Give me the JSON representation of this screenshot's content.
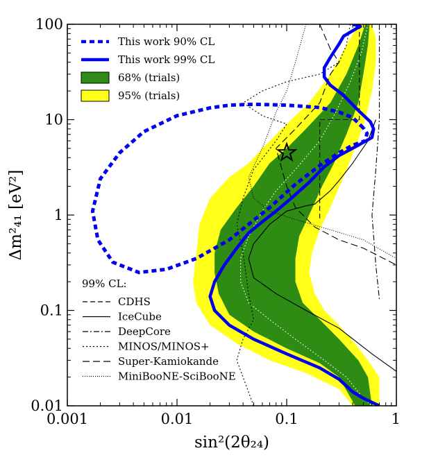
{
  "chart_data": {
    "type": "line",
    "xscale": "log",
    "yscale": "log",
    "xlim": [
      0.001,
      1
    ],
    "ylim": [
      0.01,
      100
    ],
    "xlabel": "sin²(2θ₂₄)",
    "ylabel": "Δm²₄₁ [eV²]",
    "xticks": [
      {
        "value": 0.001,
        "label": "0.001"
      },
      {
        "value": 0.01,
        "label": "0.01"
      },
      {
        "value": 0.1,
        "label": "0.1"
      },
      {
        "value": 1,
        "label": "1"
      }
    ],
    "yticks": [
      {
        "value": 0.01,
        "label": "0.01"
      },
      {
        "value": 0.1,
        "label": "0.1"
      },
      {
        "value": 1,
        "label": "1"
      },
      {
        "value": 10,
        "label": "10"
      },
      {
        "value": 100,
        "label": "100"
      }
    ],
    "legend_top": [
      {
        "label": "This work 90% CL",
        "style": "dashed-thick",
        "color": "#0000ee"
      },
      {
        "label": "This work 99% CL",
        "style": "solid-thick",
        "color": "#0000ee"
      },
      {
        "label": "68% (trials)",
        "style": "patch",
        "color": "#2e8b14"
      },
      {
        "label": "95% (trials)",
        "style": "patch",
        "color": "#ffff1a"
      }
    ],
    "legend_bottom_title": "99% CL:",
    "legend_bottom": [
      {
        "label": "CDHS",
        "style": "dashed"
      },
      {
        "label": "IceCube",
        "style": "solid"
      },
      {
        "label": "DeepCore",
        "style": "dashdot"
      },
      {
        "label": "MINOS/MINOS+",
        "style": "dotted"
      },
      {
        "label": "Super-Kamiokande",
        "style": "loosedash"
      },
      {
        "label": "MiniBooNE-SciBooNE",
        "style": "finedot"
      }
    ],
    "best_fit": {
      "x": 0.1,
      "y": 4.5,
      "marker": "star"
    },
    "band95": [
      [
        0.45,
        100
      ],
      [
        0.35,
        60
      ],
      [
        0.25,
        30
      ],
      [
        0.16,
        15
      ],
      [
        0.09,
        8
      ],
      [
        0.06,
        5
      ],
      [
        0.045,
        3.5
      ],
      [
        0.03,
        2.5
      ],
      [
        0.02,
        1.5
      ],
      [
        0.016,
        0.8
      ],
      [
        0.015,
        0.4
      ],
      [
        0.014,
        0.2
      ],
      [
        0.015,
        0.12
      ],
      [
        0.02,
        0.07
      ],
      [
        0.035,
        0.045
      ],
      [
        0.07,
        0.03
      ],
      [
        0.15,
        0.022
      ],
      [
        0.3,
        0.015
      ],
      [
        0.4,
        0.01
      ],
      [
        0.7,
        0.01
      ],
      [
        0.7,
        0.02
      ],
      [
        0.55,
        0.03
      ],
      [
        0.42,
        0.045
      ],
      [
        0.3,
        0.07
      ],
      [
        0.22,
        0.1
      ],
      [
        0.18,
        0.15
      ],
      [
        0.16,
        0.25
      ],
      [
        0.17,
        0.4
      ],
      [
        0.2,
        0.7
      ],
      [
        0.25,
        1.2
      ],
      [
        0.33,
        2.5
      ],
      [
        0.42,
        5
      ],
      [
        0.52,
        10
      ],
      [
        0.6,
        20
      ],
      [
        0.65,
        40
      ],
      [
        0.65,
        70
      ],
      [
        0.6,
        100
      ]
    ],
    "band68": [
      [
        0.52,
        100
      ],
      [
        0.45,
        60
      ],
      [
        0.35,
        30
      ],
      [
        0.25,
        15
      ],
      [
        0.15,
        8
      ],
      [
        0.1,
        5
      ],
      [
        0.07,
        3.5
      ],
      [
        0.05,
        2
      ],
      [
        0.035,
        1.2
      ],
      [
        0.025,
        0.7
      ],
      [
        0.022,
        0.4
      ],
      [
        0.022,
        0.25
      ],
      [
        0.024,
        0.15
      ],
      [
        0.03,
        0.09
      ],
      [
        0.05,
        0.06
      ],
      [
        0.1,
        0.04
      ],
      [
        0.2,
        0.028
      ],
      [
        0.3,
        0.02
      ],
      [
        0.42,
        0.01
      ],
      [
        0.6,
        0.01
      ],
      [
        0.55,
        0.02
      ],
      [
        0.45,
        0.03
      ],
      [
        0.3,
        0.05
      ],
      [
        0.2,
        0.08
      ],
      [
        0.14,
        0.12
      ],
      [
        0.12,
        0.2
      ],
      [
        0.12,
        0.35
      ],
      [
        0.13,
        0.6
      ],
      [
        0.16,
        1.0
      ],
      [
        0.21,
        2
      ],
      [
        0.27,
        3.5
      ],
      [
        0.35,
        7
      ],
      [
        0.45,
        15
      ],
      [
        0.5,
        30
      ],
      [
        0.55,
        60
      ],
      [
        0.57,
        100
      ]
    ],
    "median": [
      [
        0.55,
        100
      ],
      [
        0.48,
        50
      ],
      [
        0.38,
        25
      ],
      [
        0.28,
        12
      ],
      [
        0.2,
        6
      ],
      [
        0.12,
        3
      ],
      [
        0.08,
        1.8
      ],
      [
        0.06,
        1.1
      ],
      [
        0.045,
        0.6
      ],
      [
        0.038,
        0.35
      ],
      [
        0.038,
        0.2
      ],
      [
        0.045,
        0.12
      ],
      [
        0.07,
        0.08
      ],
      [
        0.12,
        0.05
      ],
      [
        0.22,
        0.03
      ],
      [
        0.35,
        0.02
      ],
      [
        0.5,
        0.012
      ],
      [
        0.6,
        0.01
      ]
    ],
    "this_work_90": [
      [
        0.5,
        8.2
      ],
      [
        0.4,
        10.5
      ],
      [
        0.3,
        12
      ],
      [
        0.2,
        13.4
      ],
      [
        0.1,
        14.2
      ],
      [
        0.05,
        14.5
      ],
      [
        0.03,
        14.2
      ],
      [
        0.02,
        13.3
      ],
      [
        0.01,
        11
      ],
      [
        0.005,
        7.5
      ],
      [
        0.003,
        4.5
      ],
      [
        0.002,
        2.4
      ],
      [
        0.0017,
        1.1
      ],
      [
        0.0019,
        0.55
      ],
      [
        0.0026,
        0.32
      ],
      [
        0.0045,
        0.25
      ],
      [
        0.008,
        0.27
      ],
      [
        0.015,
        0.35
      ],
      [
        0.03,
        0.55
      ],
      [
        0.07,
        1.2
      ],
      [
        0.12,
        2.1
      ],
      [
        0.2,
        3.3
      ],
      [
        0.3,
        4.5
      ],
      [
        0.4,
        5.4
      ],
      [
        0.52,
        6.0
      ],
      [
        0.54,
        7.2
      ],
      [
        0.5,
        8.2
      ]
    ],
    "this_work_99": [
      [
        0.4,
        100
      ],
      [
        0.47,
        95
      ],
      [
        0.43,
        90
      ],
      [
        0.33,
        75
      ],
      [
        0.3,
        62
      ],
      [
        0.28,
        55
      ],
      [
        0.25,
        45
      ],
      [
        0.22,
        35
      ],
      [
        0.22,
        28
      ],
      [
        0.25,
        23
      ],
      [
        0.33,
        18
      ],
      [
        0.45,
        12.5
      ],
      [
        0.58,
        9.5
      ],
      [
        0.62,
        8
      ],
      [
        0.6,
        6.5
      ],
      [
        0.45,
        5.4
      ],
      [
        0.3,
        4.2
      ],
      [
        0.22,
        3.2
      ],
      [
        0.16,
        2.2
      ],
      [
        0.11,
        1.5
      ],
      [
        0.08,
        1.1
      ],
      [
        0.06,
        0.85
      ],
      [
        0.045,
        0.65
      ],
      [
        0.035,
        0.45
      ],
      [
        0.027,
        0.3
      ],
      [
        0.022,
        0.2
      ],
      [
        0.02,
        0.14
      ],
      [
        0.022,
        0.1
      ],
      [
        0.03,
        0.07
      ],
      [
        0.05,
        0.05
      ],
      [
        0.1,
        0.035
      ],
      [
        0.2,
        0.025
      ],
      [
        0.3,
        0.019
      ],
      [
        0.4,
        0.014
      ],
      [
        0.5,
        0.012
      ],
      [
        0.7,
        0.01
      ]
    ],
    "cdhs": [
      [
        0.46,
        100
      ],
      [
        0.46,
        30
      ],
      [
        0.46,
        10
      ],
      [
        0.2,
        10
      ],
      [
        0.2,
        0.9
      ]
    ],
    "icecube": [
      [
        0.65,
        10
      ],
      [
        0.55,
        6
      ],
      [
        0.4,
        3.5
      ],
      [
        0.3,
        2.3
      ],
      [
        0.25,
        1.8
      ],
      [
        0.18,
        1.3
      ],
      [
        0.15,
        1.25
      ],
      [
        0.1,
        1.1
      ],
      [
        0.07,
        0.8
      ],
      [
        0.05,
        0.5
      ],
      [
        0.045,
        0.35
      ],
      [
        0.05,
        0.22
      ],
      [
        0.08,
        0.15
      ],
      [
        0.15,
        0.1
      ],
      [
        0.3,
        0.065
      ],
      [
        0.6,
        0.035
      ],
      [
        1,
        0.023
      ]
    ],
    "deepcore": [
      [
        0.7,
        100
      ],
      [
        0.7,
        10
      ],
      [
        0.65,
        3
      ],
      [
        0.6,
        1
      ],
      [
        0.65,
        0.3
      ],
      [
        0.7,
        0.13
      ]
    ],
    "minos": [
      [
        0.38,
        100
      ],
      [
        0.35,
        60
      ],
      [
        0.3,
        40
      ],
      [
        0.2,
        30
      ],
      [
        0.1,
        25
      ],
      [
        0.06,
        20
      ],
      [
        0.04,
        15
      ],
      [
        0.06,
        11
      ],
      [
        0.1,
        9
      ],
      [
        0.08,
        6
      ],
      [
        0.05,
        3
      ],
      [
        0.04,
        1.5
      ],
      [
        0.035,
        0.8
      ],
      [
        0.04,
        0.4
      ],
      [
        0.045,
        0.15
      ],
      [
        0.05,
        0.08
      ],
      [
        0.04,
        0.05
      ],
      [
        0.035,
        0.03
      ],
      [
        0.04,
        0.02
      ],
      [
        0.05,
        0.01
      ]
    ],
    "superk": [
      [
        0.2,
        100
      ],
      [
        0.25,
        55
      ],
      [
        0.3,
        40
      ],
      [
        0.25,
        30
      ],
      [
        0.2,
        15
      ],
      [
        0.12,
        8
      ],
      [
        0.08,
        5
      ],
      [
        0.1,
        2
      ],
      [
        0.12,
        1.2
      ],
      [
        0.18,
        0.75
      ],
      [
        0.3,
        0.55
      ],
      [
        0.5,
        0.45
      ],
      [
        1,
        0.3
      ]
    ],
    "miniboone": [
      [
        0.15,
        100
      ],
      [
        0.12,
        40
      ],
      [
        0.1,
        20
      ],
      [
        0.08,
        12
      ],
      [
        0.07,
        8
      ],
      [
        0.06,
        5
      ],
      [
        0.045,
        2.5
      ],
      [
        0.05,
        1.5
      ],
      [
        0.07,
        1.1
      ],
      [
        0.12,
        0.9
      ],
      [
        0.25,
        0.7
      ],
      [
        0.5,
        0.55
      ],
      [
        1,
        0.35
      ]
    ]
  }
}
